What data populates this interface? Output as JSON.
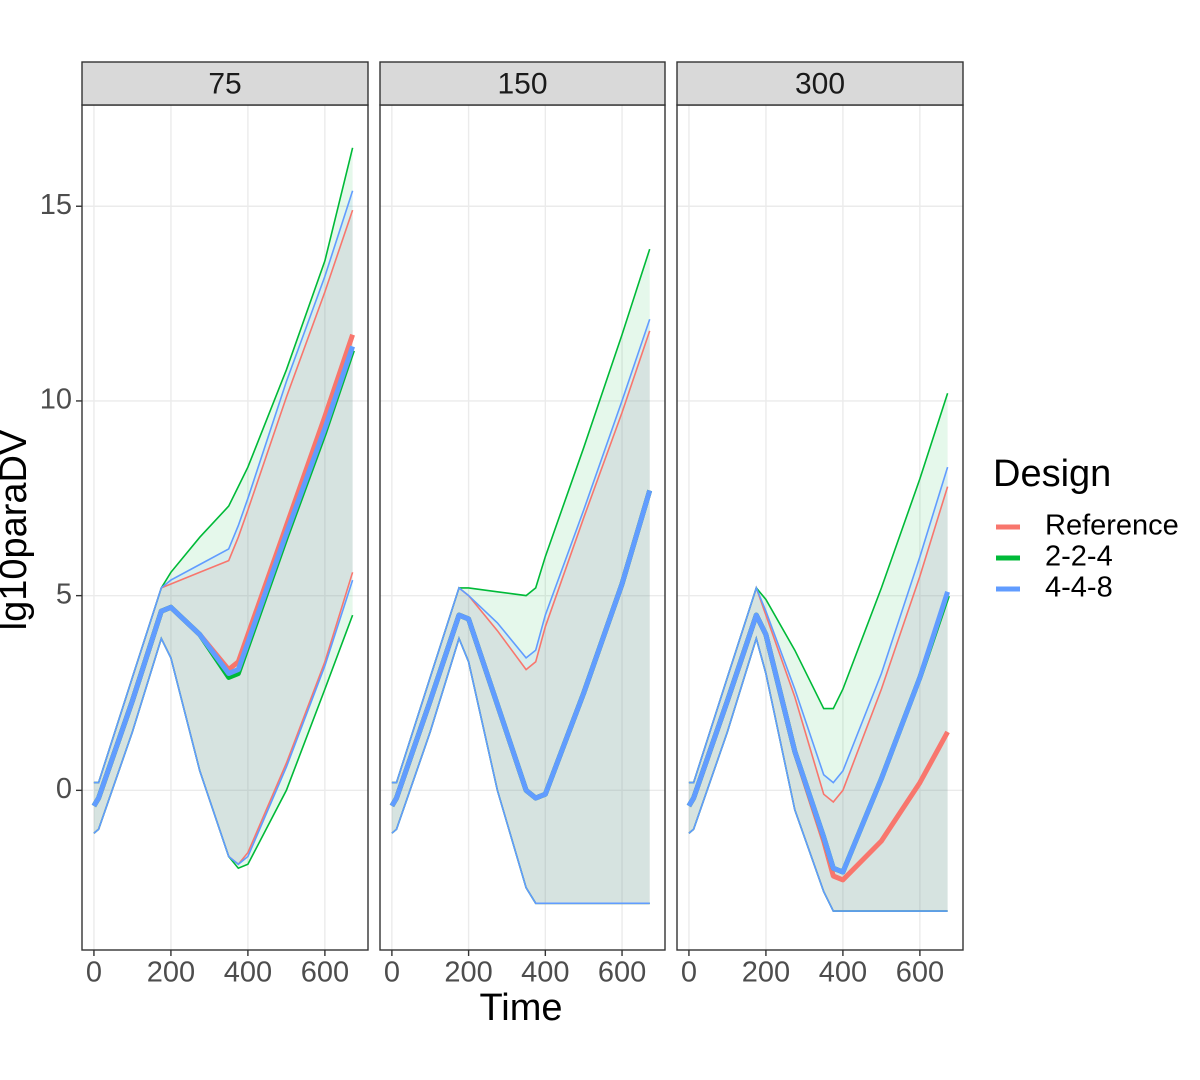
{
  "chart_data": {
    "type": "line",
    "x_label": "Time",
    "y_label": "lg10paraDV",
    "legend_title": "Design",
    "legend": "right",
    "grid": true,
    "x": [
      0,
      12,
      100,
      175,
      200,
      275,
      350,
      375,
      400,
      500,
      600,
      672
    ],
    "xlim": [
      -31,
      712
    ],
    "xticks": [
      0,
      200,
      400,
      600
    ],
    "ylim": [
      -4.1,
      17.6
    ],
    "yticks": [
      0,
      5,
      10,
      15
    ],
    "facets": [
      {
        "title": "75",
        "series": [
          {
            "name": "Reference",
            "color": "#F8766D",
            "values": [
              -0.4,
              -0.2,
              2.3,
              4.6,
              4.7,
              4.0,
              3.1,
              3.3,
              4.0,
              6.8,
              9.6,
              11.7
            ],
            "upper": [
              0.2,
              0.2,
              2.9,
              5.2,
              5.3,
              5.6,
              5.9,
              6.5,
              7.2,
              10.1,
              12.8,
              14.9
            ],
            "lower": [
              -1.1,
              -1.0,
              1.5,
              3.9,
              3.4,
              0.5,
              -1.7,
              -1.9,
              -1.6,
              0.7,
              3.3,
              5.6
            ]
          },
          {
            "name": "2-2-4",
            "color": "#00BA38",
            "values": [
              -0.4,
              -0.2,
              2.3,
              4.6,
              4.7,
              4.0,
              2.9,
              3.0,
              3.7,
              6.5,
              9.2,
              11.3
            ],
            "upper": [
              0.2,
              0.2,
              2.9,
              5.2,
              5.6,
              6.5,
              7.3,
              7.8,
              8.3,
              10.8,
              13.6,
              16.5
            ],
            "lower": [
              -1.1,
              -1.0,
              1.5,
              3.9,
              3.4,
              0.5,
              -1.7,
              -2.0,
              -1.9,
              0.0,
              2.6,
              4.5
            ]
          },
          {
            "name": "4-4-8",
            "color": "#619CFF",
            "values": [
              -0.4,
              -0.2,
              2.3,
              4.6,
              4.7,
              4.0,
              3.0,
              3.1,
              3.8,
              6.6,
              9.3,
              11.4
            ],
            "upper": [
              0.2,
              0.2,
              2.9,
              5.2,
              5.4,
              5.8,
              6.2,
              6.8,
              7.5,
              10.5,
              13.2,
              15.4
            ],
            "lower": [
              -1.1,
              -1.0,
              1.5,
              3.9,
              3.4,
              0.5,
              -1.7,
              -1.9,
              -1.7,
              0.6,
              3.2,
              5.4
            ]
          }
        ]
      },
      {
        "title": "150",
        "series": [
          {
            "name": "Reference",
            "color": "#F8766D",
            "values": [
              -0.4,
              -0.2,
              2.3,
              4.5,
              4.4,
              2.2,
              0.0,
              -0.2,
              -0.1,
              2.5,
              5.3,
              7.7
            ],
            "upper": [
              0.2,
              0.2,
              2.9,
              5.2,
              5.0,
              4.1,
              3.1,
              3.3,
              4.2,
              7.0,
              9.7,
              11.8
            ],
            "lower": [
              -1.1,
              -1.0,
              1.5,
              3.9,
              3.3,
              0.0,
              -2.5,
              -2.9,
              -2.9,
              -2.9,
              -2.9,
              -2.9
            ]
          },
          {
            "name": "2-2-4",
            "color": "#00BA38",
            "values": [
              -0.4,
              -0.2,
              2.3,
              4.5,
              4.4,
              2.2,
              0.0,
              -0.2,
              -0.1,
              2.5,
              5.3,
              7.7
            ],
            "upper": [
              0.2,
              0.2,
              2.9,
              5.2,
              5.2,
              5.1,
              5.0,
              5.2,
              6.0,
              8.8,
              11.7,
              13.9
            ],
            "lower": [
              -1.1,
              -1.0,
              1.5,
              3.9,
              3.3,
              0.0,
              -2.5,
              -2.9,
              -2.9,
              -2.9,
              -2.9,
              -2.9
            ]
          },
          {
            "name": "4-4-8",
            "color": "#619CFF",
            "values": [
              -0.4,
              -0.2,
              2.3,
              4.5,
              4.4,
              2.2,
              0.0,
              -0.2,
              -0.1,
              2.5,
              5.3,
              7.7
            ],
            "upper": [
              0.2,
              0.2,
              2.9,
              5.2,
              5.0,
              4.3,
              3.4,
              3.6,
              4.5,
              7.2,
              10.0,
              12.1
            ],
            "lower": [
              -1.1,
              -1.0,
              1.5,
              3.9,
              3.3,
              0.0,
              -2.5,
              -2.9,
              -2.9,
              -2.9,
              -2.9,
              -2.9
            ]
          }
        ]
      },
      {
        "title": "300",
        "series": [
          {
            "name": "Reference",
            "color": "#F8766D",
            "values": [
              -0.4,
              -0.2,
              2.3,
              4.5,
              4.0,
              1.0,
              -1.3,
              -2.2,
              -2.3,
              -1.3,
              0.2,
              1.5
            ],
            "upper": [
              0.2,
              0.2,
              2.9,
              5.2,
              4.5,
              2.4,
              -0.1,
              -0.3,
              0.0,
              2.6,
              5.5,
              7.8
            ],
            "lower": [
              -1.1,
              -1.0,
              1.5,
              3.9,
              3.0,
              -0.5,
              -2.6,
              -3.1,
              -3.1,
              -3.1,
              -3.1,
              -3.1
            ]
          },
          {
            "name": "2-2-4",
            "color": "#00BA38",
            "values": [
              -0.4,
              -0.2,
              2.3,
              4.5,
              4.0,
              1.0,
              -1.2,
              -2.0,
              -2.1,
              0.3,
              2.9,
              5.0
            ],
            "upper": [
              0.2,
              0.2,
              2.9,
              5.2,
              4.9,
              3.6,
              2.1,
              2.1,
              2.6,
              5.2,
              8.0,
              10.2
            ],
            "lower": [
              -1.1,
              -1.0,
              1.5,
              3.9,
              3.0,
              -0.5,
              -2.6,
              -3.1,
              -3.1,
              -3.1,
              -3.1,
              -3.1
            ]
          },
          {
            "name": "4-4-8",
            "color": "#619CFF",
            "values": [
              -0.4,
              -0.2,
              2.3,
              4.5,
              4.0,
              1.0,
              -1.2,
              -2.0,
              -2.1,
              0.3,
              2.9,
              5.1
            ],
            "upper": [
              0.2,
              0.2,
              2.9,
              5.2,
              4.6,
              2.6,
              0.4,
              0.2,
              0.5,
              3.0,
              6.0,
              8.3
            ],
            "lower": [
              -1.1,
              -1.0,
              1.5,
              3.9,
              3.0,
              -0.5,
              -2.6,
              -3.1,
              -3.1,
              -3.1,
              -3.1,
              -3.1
            ]
          }
        ]
      }
    ]
  }
}
